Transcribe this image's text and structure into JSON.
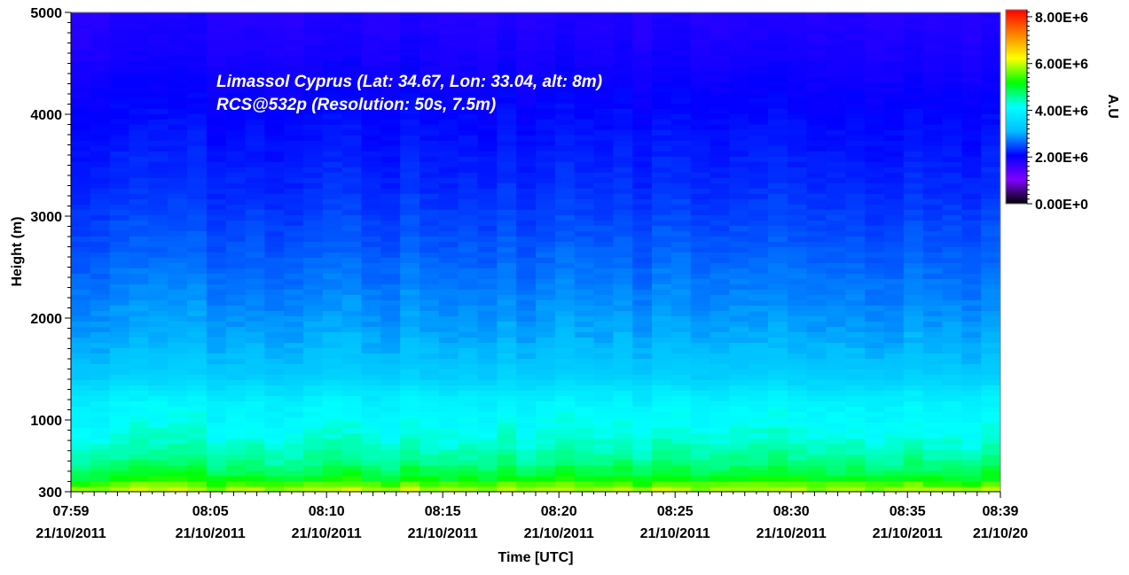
{
  "chart_data": {
    "type": "heatmap",
    "title": "",
    "xlabel": "Time [UTC]",
    "ylabel": "Height (m)",
    "colorbar_label": "A.U",
    "annotations": [
      "Limassol Cyprus (Lat: 34.67, Lon: 33.04, alt: 8m)",
      "RCS@532p (Resolution: 50s, 7.5m)"
    ],
    "x_ticks": [
      {
        "time": "07:59",
        "date": "21/10/2011"
      },
      {
        "time": "08:05",
        "date": "21/10/2011"
      },
      {
        "time": "08:10",
        "date": "21/10/2011"
      },
      {
        "time": "08:15",
        "date": "21/10/2011"
      },
      {
        "time": "08:20",
        "date": "21/10/2011"
      },
      {
        "time": "08:25",
        "date": "21/10/2011"
      },
      {
        "time": "08:30",
        "date": "21/10/2011"
      },
      {
        "time": "08:35",
        "date": "21/10/2011"
      },
      {
        "time": "08:39",
        "date": "21/10/20"
      }
    ],
    "x_tick_minutes": [
      0,
      6,
      11,
      16,
      21,
      26,
      31,
      36,
      40
    ],
    "y_ticks": [
      300,
      1000,
      2000,
      3000,
      4000,
      5000
    ],
    "ylim": [
      300,
      5000
    ],
    "colorbar_ticks": [
      "0.00E+0",
      "2.00E+6",
      "4.00E+6",
      "6.00E+6",
      "8.00E+6"
    ],
    "colorbar_tick_values": [
      0,
      2000000,
      4000000,
      6000000,
      8000000
    ],
    "colorbar_range": [
      0,
      8300000
    ],
    "colormap": [
      "#000000",
      "#8000ff",
      "#0000ff",
      "#00c0ff",
      "#00ffff",
      "#00ff00",
      "#ffff00",
      "#ff8000",
      "#ff0000"
    ],
    "grid": false,
    "profile": {
      "height_m": [
        300,
        450,
        600,
        800,
        1000,
        1150,
        1300,
        1400,
        1550,
        1800,
        2200,
        2700,
        3300,
        4000,
        4600,
        5000
      ],
      "signal_au": [
        6000000,
        5000000,
        4600000,
        4300000,
        4100000,
        4000000,
        3700000,
        3400000,
        3200000,
        3000000,
        2800000,
        2550000,
        2300000,
        2100000,
        1900000,
        1800000
      ]
    }
  }
}
